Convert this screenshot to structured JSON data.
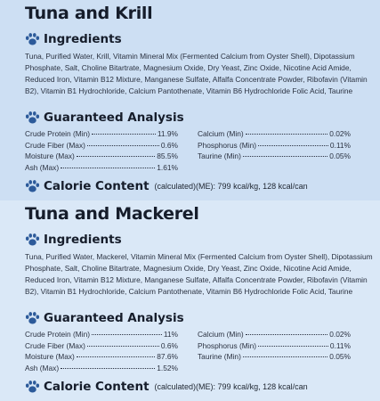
{
  "sections": [
    {
      "title": "Tuna and Krill",
      "ingredients_heading": "Ingredients",
      "ingredients": "Tuna, Purified Water, Krill, Vitamin Mineral Mix (Fermented Calcium from Oyster Shell), Dipotassium Phosphate, Salt, Choline Bitartrate, Magnesium Oxide, Dry Yeast, Zinc Oxide, Nicotine Acid Amide, Reduced Iron, Vitamin B12 Mixture, Manganese Sulfate, Alfalfa Concentrate Powder, Ribofavin (Vitamin B2), Vitamin B1 Hydrochloride, Calcium Pantothenate, Vitamin B6 Hydrochloride Folic Acid, Taurine",
      "analysis_heading": "Guaranteed Analysis",
      "analysis_left": [
        {
          "label": "Crude Protein (Min)",
          "value": "11.9%"
        },
        {
          "label": "Crude Fiber (Max)",
          "value": "0.6%"
        },
        {
          "label": "Moisture (Max)",
          "value": "85.5%"
        },
        {
          "label": "Ash (Max)",
          "value": "1.61%"
        }
      ],
      "analysis_right": [
        {
          "label": "Calcium (Min)",
          "value": "0.02%"
        },
        {
          "label": "Phosphorus (Min)",
          "value": "0.11%"
        },
        {
          "label": "Taurine (Min)",
          "value": "0.05%"
        }
      ],
      "calorie_heading": "Calorie Content",
      "calorie_text": "(calculated)(ME): 799 kcal/kg, 128 kcal/can"
    },
    {
      "title": "Tuna and Mackerel",
      "ingredients_heading": "Ingredients",
      "ingredients": "Tuna, Purified Water, Mackerel, Vitamin Mineral Mix (Fermented Calcium from Oyster Shell), Dipotassium Phosphate, Salt, Choline Bitartrate, Magnesium Oxide, Dry Yeast, Zinc Oxide, Nicotine Acid Amide, Reduced Iron, Vitamin B12 Mixture, Manganese Sulfate, Alfalfa Concentrate Powder, Ribofavin (Vitamin B2), Vitamin B1 Hydrochloride, Calcium Pantothenate, Vitamin B6 Hydrochloride Folic Acid, Taurine",
      "analysis_heading": "Guaranteed Analysis",
      "analysis_left": [
        {
          "label": "Crude Protein (Min)",
          "value": "11%"
        },
        {
          "label": "Crude Fiber (Max)",
          "value": "0.6%"
        },
        {
          "label": "Moisture (Max)",
          "value": "87.6%"
        },
        {
          "label": "Ash (Max)",
          "value": "1.52%"
        }
      ],
      "analysis_right": [
        {
          "label": "Calcium (Min)",
          "value": "0.02%"
        },
        {
          "label": "Phosphorus (Min)",
          "value": "0.11%"
        },
        {
          "label": "Taurine (Min)",
          "value": "0.05%"
        }
      ],
      "calorie_heading": "Calorie Content",
      "calorie_text": "(calculated)(ME): 799 kcal/kg, 128 kcal/can"
    }
  ]
}
